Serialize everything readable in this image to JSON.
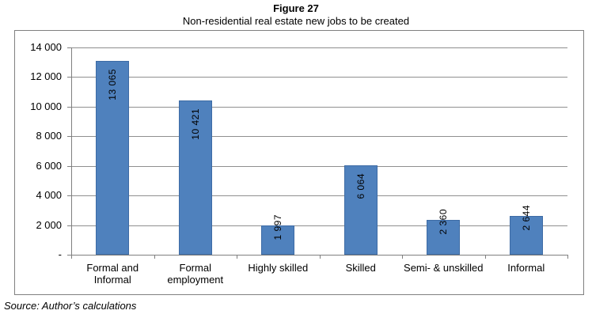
{
  "figure": {
    "label": "Figure 27",
    "title": "Non-residential real estate new jobs to be created"
  },
  "source_note": "Source: Author’s calculations",
  "colors": {
    "bar_fill": "#4f81bd",
    "bar_border": "#3d6ba5",
    "gridline": "#8f8f8f",
    "axis": "#7f7f7f",
    "frame_border": "#808080",
    "text": "#000000",
    "background": "#ffffff"
  },
  "chart_data": {
    "type": "bar",
    "title": "Non-residential real estate new jobs to be created",
    "categories": [
      "Formal and Informal",
      "Formal employment",
      "Highly skilled",
      "Skilled",
      "Semi- & unskilled",
      "Informal"
    ],
    "category_label_lines": [
      [
        "Formal and",
        "Informal"
      ],
      [
        "Formal",
        "employment"
      ],
      [
        "Highly skilled"
      ],
      [
        "Skilled"
      ],
      [
        "Semi- & unskilled"
      ],
      [
        "Informal"
      ]
    ],
    "values": [
      13065,
      10421,
      1997,
      6064,
      2360,
      2644
    ],
    "value_labels": [
      "13 065",
      "10 421",
      "1 997",
      "6 064",
      "2 360",
      "2 644"
    ],
    "xlabel": "",
    "ylabel": "",
    "ylim": [
      0,
      14000
    ],
    "ytick_interval": 2000,
    "ytick_labels_bottom_to_top": [
      "-",
      "2 000",
      "4 000",
      "6 000",
      "8 000",
      "10 000",
      "12 000",
      "14 000"
    ],
    "grid": true,
    "legend": false,
    "bar_value_label_rotation": "vertical-bottom-to-top",
    "bar_value_label_position": "inside-end"
  }
}
